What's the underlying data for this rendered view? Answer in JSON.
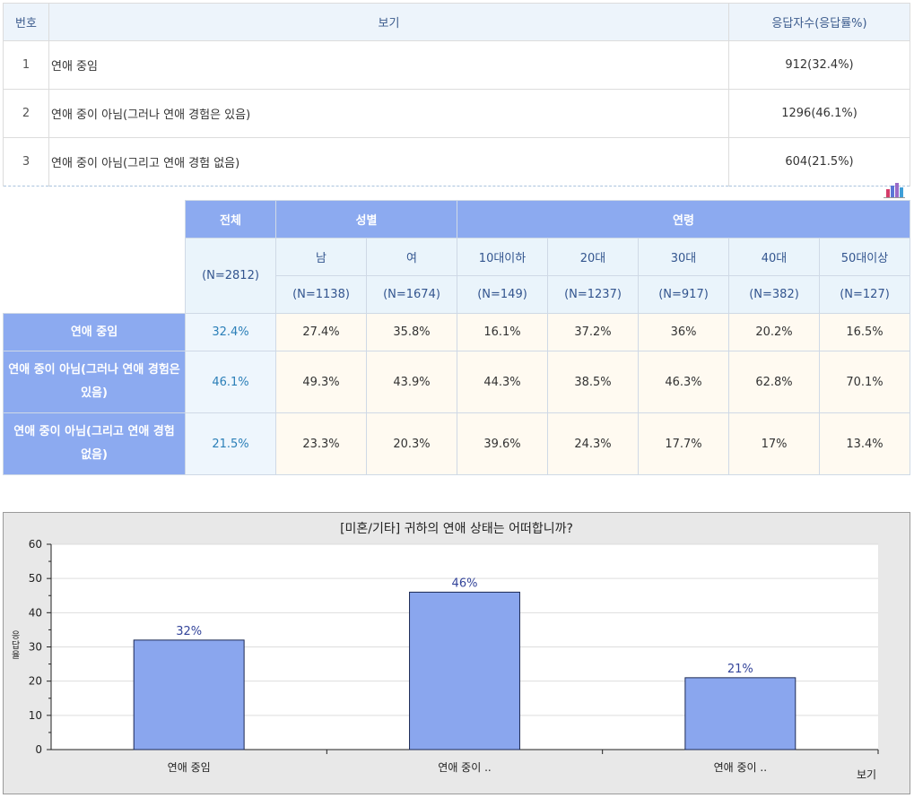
{
  "summary": {
    "headers": {
      "num": "번호",
      "option": "보기",
      "answers": "응답자수(응답률%)"
    },
    "rows": [
      {
        "num": "1",
        "option": "연애 중임",
        "answers": "912(32.4%)"
      },
      {
        "num": "2",
        "option": "연애 중이 아님(그러나 연애 경험은 있음)",
        "answers": "1296(46.1%)"
      },
      {
        "num": "3",
        "option": "연애 중이 아님(그리고 연애 경험 없음)",
        "answers": "604(21.5%)"
      }
    ]
  },
  "crosstab": {
    "total_label": "전체",
    "total_n": "(N=2812)",
    "gender_label": "성별",
    "age_label": "연령",
    "columns": [
      {
        "label": "남",
        "n": "(N=1138)"
      },
      {
        "label": "여",
        "n": "(N=1674)"
      },
      {
        "label": "10대이하",
        "n": "(N=149)"
      },
      {
        "label": "20대",
        "n": "(N=1237)"
      },
      {
        "label": "30대",
        "n": "(N=917)"
      },
      {
        "label": "40대",
        "n": "(N=382)"
      },
      {
        "label": "50대이상",
        "n": "(N=127)"
      }
    ],
    "rows": [
      {
        "label": "연애 중임",
        "total": "32.4%",
        "values": [
          "27.4%",
          "35.8%",
          "16.1%",
          "37.2%",
          "36%",
          "20.2%",
          "16.5%"
        ]
      },
      {
        "label": "연애 중이 아님(그러나 연애 경험은 있음)",
        "total": "46.1%",
        "values": [
          "49.3%",
          "43.9%",
          "44.3%",
          "38.5%",
          "46.3%",
          "62.8%",
          "70.1%"
        ]
      },
      {
        "label": "연애 중이 아님(그리고 연애 경험 없음)",
        "total": "21.5%",
        "values": [
          "23.3%",
          "20.3%",
          "39.6%",
          "24.3%",
          "17.7%",
          "17%",
          "13.4%"
        ]
      }
    ]
  },
  "icons": {
    "chart_toggle": "bar-chart-icon"
  },
  "colors": {
    "header_blue": "#8caaf0",
    "bar_fill": "#8aa6ee",
    "bar_stroke": "#1c2a55",
    "label_blue": "#33449a"
  },
  "chart_data": {
    "type": "bar",
    "title": "[미혼/기타] 귀하의 연애 상태는 어떠합니까?",
    "categories": [
      "연애 중임",
      "연애 중이 ..",
      "연애 중이 .."
    ],
    "values": [
      32,
      46,
      21
    ],
    "value_labels": [
      "32%",
      "46%",
      "21%"
    ],
    "xlabel": "보기",
    "ylabel": "응답율",
    "ylim": [
      0,
      60
    ],
    "yticks": [
      0,
      10,
      20,
      30,
      40,
      50,
      60
    ],
    "grid": true
  }
}
